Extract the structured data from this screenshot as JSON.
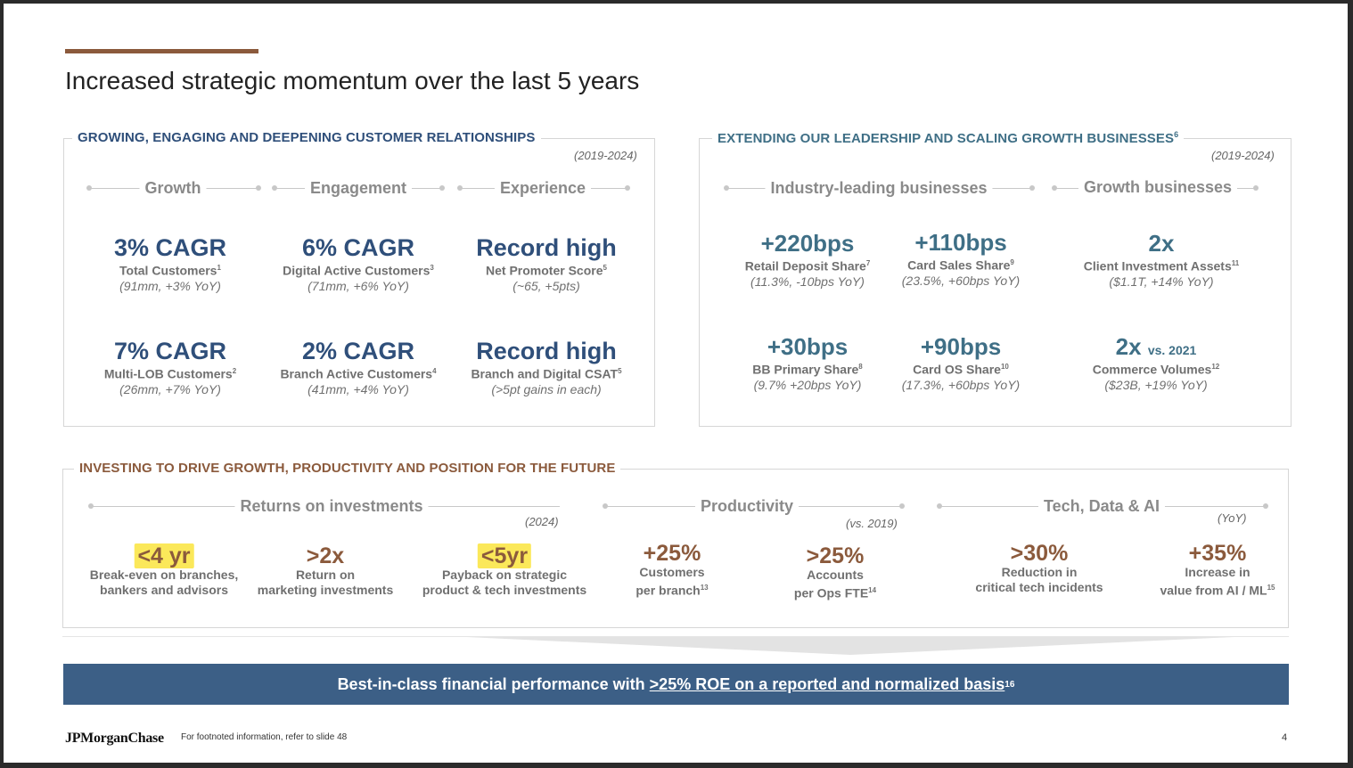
{
  "title": "Increased strategic momentum over the last 5 years",
  "panel_customers": {
    "label": "GROWING, ENGAGING AND DEEPENING CUSTOMER RELATIONSHIPS",
    "range": "(2019-2024)",
    "headers": [
      "Growth",
      "Engagement",
      "Experience"
    ],
    "metrics": [
      {
        "value": "3% CAGR",
        "label": "Total Customers",
        "note": "1",
        "sub": "(91mm, +3% YoY)"
      },
      {
        "value": "6% CAGR",
        "label": "Digital Active Customers",
        "note": "3",
        "sub": "(71mm, +6% YoY)"
      },
      {
        "value": "Record high",
        "label": "Net Promoter Score",
        "note": "5",
        "sub": "(~65, +5pts)"
      },
      {
        "value": "7% CAGR",
        "label": "Multi-LOB Customers",
        "note": "2",
        "sub": "(26mm, +7% YoY)"
      },
      {
        "value": "2% CAGR",
        "label": "Branch Active Customers",
        "note": "4",
        "sub": "(41mm, +4% YoY)"
      },
      {
        "value": "Record high",
        "label": "Branch and Digital CSAT",
        "note": "5",
        "sub": "(>5pt gains in each)"
      }
    ]
  },
  "panel_leadership": {
    "label": "EXTENDING OUR LEADERSHIP AND SCALING GROWTH BUSINESSES",
    "label_note": "6",
    "range": "(2019-2024)",
    "headers": [
      "Industry-leading businesses",
      "Growth businesses"
    ],
    "metrics": [
      {
        "value": "+220bps",
        "label": "Retail Deposit Share",
        "note": "7",
        "sub": "(11.3%, -10bps YoY)"
      },
      {
        "value": "+110bps",
        "label": "Card Sales Share",
        "note": "9",
        "sub": "(23.5%, +60bps YoY)"
      },
      {
        "value": "2x",
        "label": "Client Investment Assets",
        "note": "11",
        "sub": "($1.1T, +14% YoY)"
      },
      {
        "value": "+30bps",
        "label": "BB Primary Share",
        "note": "8",
        "sub": "(9.7% +20bps YoY)"
      },
      {
        "value": "+90bps",
        "label": "Card OS Share",
        "note": "10",
        "sub": "(17.3%, +60bps YoY)"
      },
      {
        "value": "2x",
        "value_suffix": "vs. 2021",
        "label": "Commerce Volumes",
        "note": "12",
        "sub": "($23B, +19% YoY)"
      }
    ]
  },
  "panel_investing": {
    "label": "INVESTING TO DRIVE GROWTH, PRODUCTIVITY AND POSITION FOR THE FUTURE",
    "headers": [
      "Returns on investments",
      "Productivity",
      "Tech, Data & AI"
    ],
    "ranges": [
      "(2024)",
      "(vs. 2019)",
      "(YoY)"
    ],
    "metrics": [
      {
        "value": "<4 yr",
        "line1": "Break-even on branches,",
        "line2": "bankers and advisors",
        "note": ""
      },
      {
        "value": ">2x",
        "line1": "Return on",
        "line2": "marketing investments",
        "note": ""
      },
      {
        "value": "<5yr",
        "line1": "Payback on strategic",
        "line2": "product & tech investments",
        "note": ""
      },
      {
        "value": "+25%",
        "line1": "Customers",
        "line2": "per branch",
        "note": "13"
      },
      {
        "value": ">25%",
        "line1": "Accounts",
        "line2": "per Ops FTE",
        "note": "14"
      },
      {
        "value": ">30%",
        "line1": "Reduction in",
        "line2": "critical tech incidents",
        "note": ""
      },
      {
        "value": "+35%",
        "line1": "Increase in",
        "line2": "value from AI / ML",
        "note": "15"
      }
    ]
  },
  "banner": {
    "prefix": "Best-in-class financial performance with ",
    "emphasis": ">25% ROE on a reported and normalized basis",
    "note": "16"
  },
  "footer": {
    "logo": "JPMorganChase",
    "footnote": "For footnoted information, refer to slide 48",
    "page": "4"
  },
  "colors": {
    "blue_label": "#2f4f7a",
    "teal_label": "#3f6f86",
    "brown_label": "#8b5a3c",
    "banner_bg": "#3c5f86",
    "highlight": "#fbe85a"
  }
}
